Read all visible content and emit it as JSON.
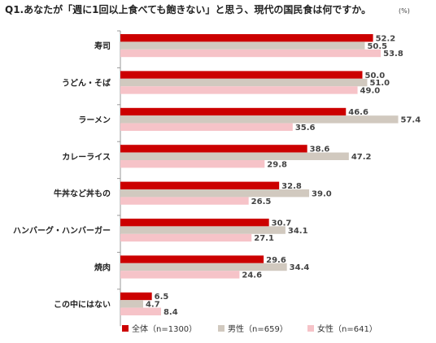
{
  "colors": {
    "all": "#cc0000",
    "male": "#d1c9bf",
    "female": "#f6c3c8",
    "axis": "#999999",
    "text": "#222222"
  },
  "chart_data": {
    "type": "bar",
    "orientation": "horizontal",
    "title": "Q1.あなたが「週に1回以上食べても飽きない」と思う、現代の国民食は何ですか。",
    "unit": "(%)",
    "categories": [
      "寿司",
      "うどん・そば",
      "ラーメン",
      "カレーライス",
      "牛丼など丼もの",
      "ハンバーグ・ハンバーガー",
      "焼肉",
      "この中にはない"
    ],
    "series": [
      {
        "name": "全体（n=1300）",
        "color": "#cc0000",
        "values": [
          52.2,
          50.0,
          46.6,
          38.6,
          32.8,
          30.7,
          29.6,
          6.5
        ]
      },
      {
        "name": "男性（n=659）",
        "color": "#d1c9bf",
        "values": [
          50.5,
          51.0,
          57.4,
          47.2,
          39.0,
          34.1,
          34.4,
          4.7
        ]
      },
      {
        "name": "女性（n=641）",
        "color": "#f6c3c8",
        "values": [
          53.8,
          49.0,
          35.6,
          29.8,
          26.5,
          27.1,
          24.6,
          8.4
        ]
      }
    ],
    "value_labels": [
      [
        "52.2",
        "50.5",
        "53.8"
      ],
      [
        "50.0",
        "51.0",
        "49.0"
      ],
      [
        "46.6",
        "57.4",
        "35.6"
      ],
      [
        "38.6",
        "47.2",
        "29.8"
      ],
      [
        "32.8",
        "39.0",
        "26.5"
      ],
      [
        "30.7",
        "34.1",
        "27.1"
      ],
      [
        "29.6",
        "34.4",
        "24.6"
      ],
      [
        "6.5",
        "4.7",
        "8.4"
      ]
    ],
    "xlim": [
      0,
      60
    ],
    "grid": false,
    "legend_position": "bottom"
  }
}
